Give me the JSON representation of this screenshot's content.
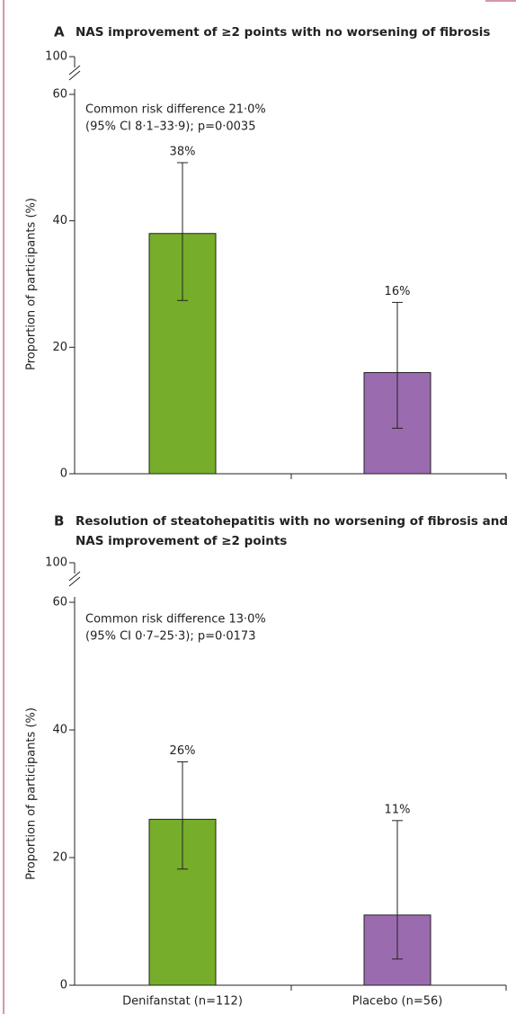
{
  "chart_data": [
    {
      "type": "bar",
      "panel": "A",
      "title": [
        "NAS improvement of ≥2 points with no worsening of fibrosis"
      ],
      "annotation": [
        "Common risk difference 21·0%",
        "(95% CI 8·1–33·9); p=0·0035"
      ],
      "y_label": "Proportion of participants (%)",
      "categories": [
        null,
        null
      ],
      "values": [
        38,
        16
      ],
      "value_labels": [
        "38%",
        "16%"
      ],
      "ci_low": [
        27.4,
        7.2
      ],
      "ci_high": [
        49.2,
        27.1
      ],
      "colors": [
        "#76ad2a",
        "#9b6bb0"
      ],
      "ylim": [
        0,
        60
      ],
      "yticks": [
        0,
        20,
        40,
        60
      ],
      "ybreak_tick": 100
    },
    {
      "type": "bar",
      "panel": "B",
      "title": [
        "Resolution of steatohepatitis with no worsening of fibrosis and",
        "NAS improvement of ≥2 points"
      ],
      "annotation": [
        "Common risk difference 13·0%",
        "(95% CI 0·7–25·3); p=0·0173"
      ],
      "y_label": "Proportion of participants (%)",
      "categories": [
        "Denifanstat (n=112)",
        "Placebo (n=56)"
      ],
      "values": [
        26,
        11
      ],
      "value_labels": [
        "26%",
        "11%"
      ],
      "ci_low": [
        18.2,
        4.1
      ],
      "ci_high": [
        35,
        25.8
      ],
      "colors": [
        "#76ad2a",
        "#9b6bb0"
      ],
      "ylim": [
        0,
        60
      ],
      "yticks": [
        0,
        20,
        40,
        60
      ],
      "ybreak_tick": 100
    }
  ]
}
